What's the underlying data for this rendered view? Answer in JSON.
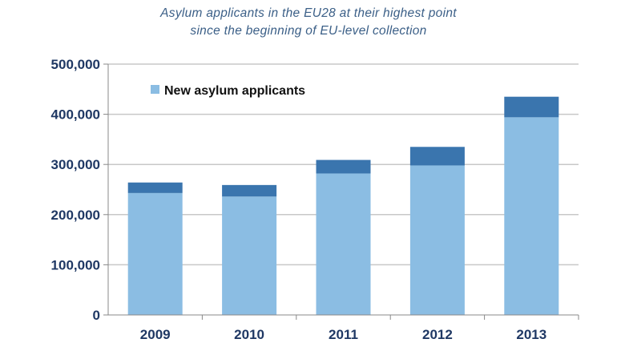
{
  "chart_data": {
    "type": "bar",
    "stacked": true,
    "title_lines": [
      "Asylum applicants in the EU28 at their highest point",
      "since the beginning of EU-level collection"
    ],
    "categories": [
      "2009",
      "2010",
      "2011",
      "2012",
      "2013"
    ],
    "series": [
      {
        "name": "New asylum applicants",
        "color": "#8bbde3",
        "values": [
          243000,
          236000,
          282000,
          298000,
          394000
        ]
      },
      {
        "color": "#3a75ae",
        "values": [
          21000,
          23000,
          27000,
          37000,
          41000
        ]
      }
    ],
    "yticks": [
      "0",
      "100,000",
      "200,000",
      "300,000",
      "400,000",
      "500,000"
    ],
    "ylim": [
      0,
      500000
    ],
    "grid": true,
    "legend": "top-left"
  }
}
